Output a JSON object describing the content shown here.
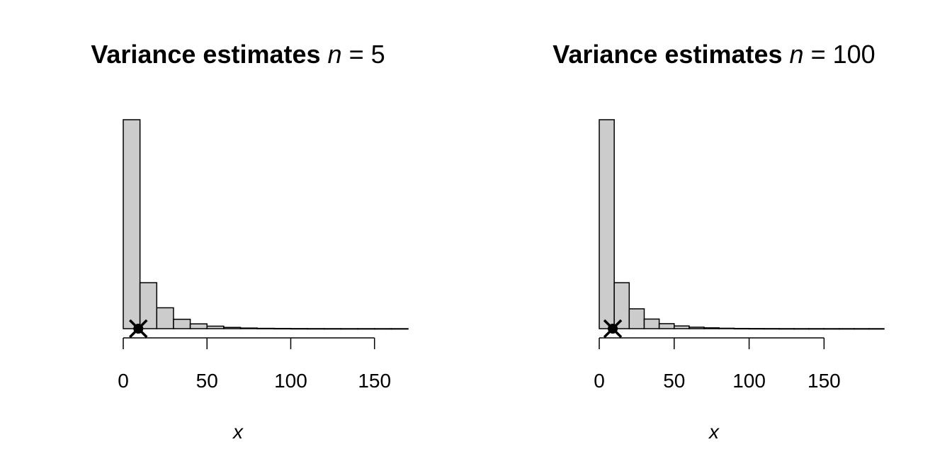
{
  "chart_data": [
    {
      "type": "bar",
      "title": {
        "main": "Variance estimates",
        "var": "n",
        "eq": "=",
        "value": "5"
      },
      "xlabel": "x",
      "ylabel": "",
      "xlim": [
        0,
        170
      ],
      "x_ticks": [
        0,
        50,
        100,
        150
      ],
      "x_tick_labels": [
        "0",
        "50",
        "100",
        "150"
      ],
      "bin_edges": [
        0,
        10,
        20,
        30,
        40,
        50,
        60,
        70,
        80,
        90,
        100,
        110,
        120,
        130,
        140,
        150,
        160,
        170
      ],
      "values": [
        100,
        22,
        10,
        4.5,
        2.3,
        1.2,
        0.6,
        0.3,
        0.15,
        0.1,
        0.05,
        0.03,
        0.02,
        0.01,
        0.01,
        0.005,
        0.005
      ],
      "marker": {
        "x": 9,
        "style": "dot-with-cross"
      },
      "grid": false,
      "colors": {
        "bar_fill": "#cccccc",
        "bar_stroke": "#000000",
        "marker": "#000000"
      }
    },
    {
      "type": "bar",
      "title": {
        "main": "Variance estimates",
        "var": "n",
        "eq": "=",
        "value": "100"
      },
      "xlabel": "x",
      "ylabel": "",
      "xlim": [
        0,
        190
      ],
      "x_ticks": [
        0,
        50,
        100,
        150
      ],
      "x_tick_labels": [
        "0",
        "50",
        "100",
        "150"
      ],
      "bin_edges": [
        0,
        10,
        20,
        30,
        40,
        50,
        60,
        70,
        80,
        90,
        100,
        110,
        120,
        130,
        140,
        150,
        160,
        170,
        180,
        190
      ],
      "values": [
        100,
        22,
        9.5,
        4.6,
        2.4,
        1.3,
        0.7,
        0.4,
        0.2,
        0.1,
        0.06,
        0.04,
        0.02,
        0.01,
        0.01,
        0.005,
        0.005,
        0.003,
        0.003
      ],
      "marker": {
        "x": 9,
        "style": "dot-with-cross"
      },
      "grid": false,
      "colors": {
        "bar_fill": "#cccccc",
        "bar_stroke": "#000000",
        "marker": "#000000"
      }
    }
  ]
}
